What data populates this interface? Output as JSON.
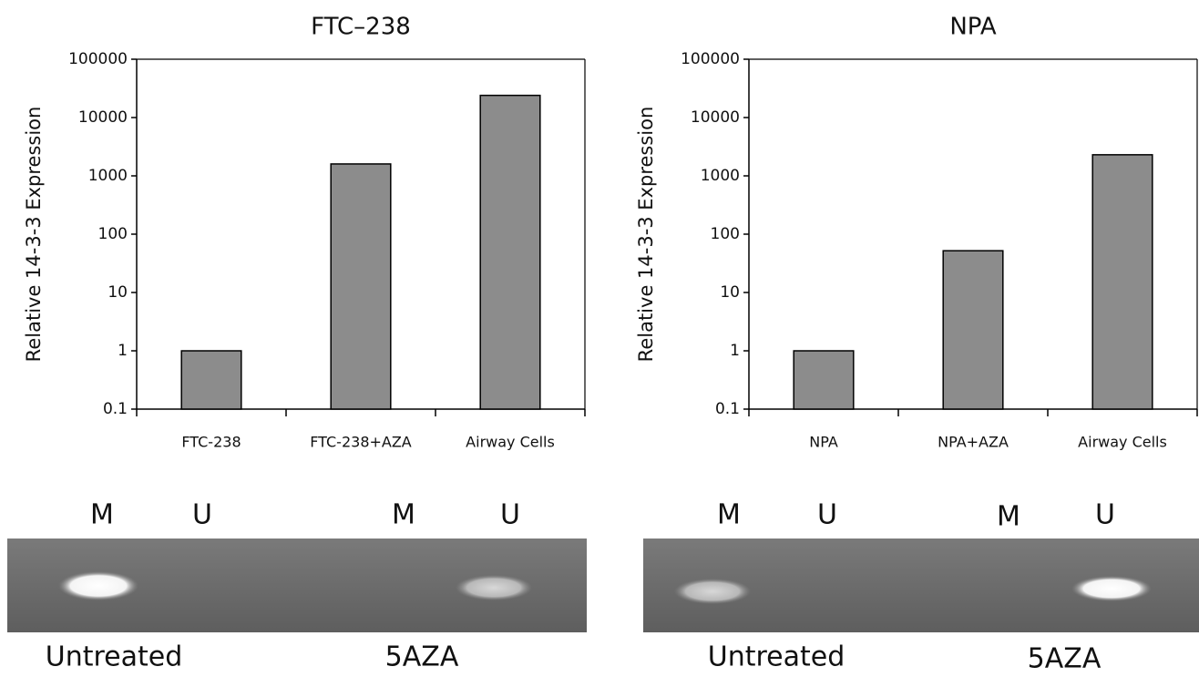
{
  "chart_data": [
    {
      "type": "bar",
      "title": "FTC–238",
      "ylabel": "Relative 14-3-3 Expression",
      "categories": [
        "FTC-238",
        "FTC-238+AZA",
        "Airway Cells"
      ],
      "values": [
        1,
        1600,
        24000
      ],
      "color": "#8c8c8c",
      "log_scale": true,
      "ylim": [
        0.1,
        100000
      ],
      "yticks": [
        0.1,
        1,
        10,
        100,
        1000,
        10000,
        100000
      ]
    },
    {
      "type": "bar",
      "title": "NPA",
      "ylabel": "Relative 14-3-3 Expression",
      "categories": [
        "NPA",
        "NPA+AZA",
        "Airway Cells"
      ],
      "values": [
        1,
        52,
        2300
      ],
      "color": "#8c8c8c",
      "log_scale": true,
      "ylim": [
        0.1,
        100000
      ],
      "yticks": [
        0.1,
        1,
        10,
        100,
        1000,
        10000,
        100000
      ]
    }
  ],
  "gels": [
    {
      "lanes": [
        "M",
        "U",
        "M",
        "U"
      ],
      "conditions": [
        "Untreated",
        "5AZA"
      ]
    },
    {
      "lanes": [
        "M",
        "U",
        "M",
        "U"
      ],
      "conditions": [
        "Untreated",
        "5AZA"
      ]
    }
  ]
}
